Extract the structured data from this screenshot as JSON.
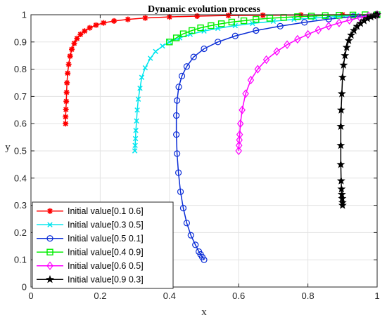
{
  "chart_data": {
    "type": "line",
    "title": "Dynamic evolution process",
    "xlabel": "x",
    "ylabel": "y",
    "xlim": [
      0,
      1
    ],
    "ylim": [
      0,
      1
    ],
    "xticks": [
      "0",
      "0.2",
      "0.4",
      "0.6",
      "0.8",
      "1"
    ],
    "yticks": [
      "0",
      "0.1",
      "0.2",
      "0.3",
      "0.4",
      "0.5",
      "0.6",
      "0.7",
      "0.8",
      "0.9",
      "1"
    ],
    "grid": true,
    "legend_position": "bottom-left",
    "series": [
      {
        "name": "Initial value[0.1 0.6]",
        "color": "#ff0000",
        "marker": "asterisk",
        "x": [
          0.1,
          0.1,
          0.101,
          0.102,
          0.103,
          0.104,
          0.106,
          0.109,
          0.113,
          0.118,
          0.125,
          0.133,
          0.143,
          0.155,
          0.17,
          0.188,
          0.21,
          0.24,
          0.28,
          0.33,
          0.4,
          0.48,
          0.57,
          0.67,
          0.78,
          0.9,
          1.0
        ],
        "y": [
          0.6,
          0.625,
          0.652,
          0.682,
          0.715,
          0.75,
          0.785,
          0.818,
          0.848,
          0.873,
          0.895,
          0.913,
          0.928,
          0.94,
          0.952,
          0.962,
          0.97,
          0.977,
          0.983,
          0.988,
          0.992,
          0.995,
          0.997,
          0.998,
          0.999,
          1.0,
          1.0
        ]
      },
      {
        "name": "Initial value[0.3 0.5]",
        "color": "#00e5ee",
        "marker": "x",
        "x": [
          0.3,
          0.301,
          0.302,
          0.303,
          0.305,
          0.307,
          0.31,
          0.315,
          0.32,
          0.33,
          0.345,
          0.36,
          0.38,
          0.4,
          0.43,
          0.46,
          0.5,
          0.54,
          0.59,
          0.64,
          0.7,
          0.76,
          0.82,
          0.88,
          0.94,
          1.0
        ],
        "y": [
          0.5,
          0.52,
          0.545,
          0.575,
          0.61,
          0.65,
          0.69,
          0.73,
          0.77,
          0.805,
          0.84,
          0.865,
          0.885,
          0.9,
          0.915,
          0.928,
          0.94,
          0.95,
          0.96,
          0.968,
          0.976,
          0.983,
          0.988,
          0.993,
          0.997,
          1.0
        ]
      },
      {
        "name": "Initial value[0.5 0.1]",
        "color": "#0a2cd6",
        "marker": "circle",
        "x": [
          0.5,
          0.495,
          0.49,
          0.485,
          0.475,
          0.462,
          0.45,
          0.44,
          0.432,
          0.426,
          0.422,
          0.42,
          0.42,
          0.422,
          0.427,
          0.436,
          0.45,
          0.47,
          0.5,
          0.54,
          0.59,
          0.65,
          0.72,
          0.79,
          0.86,
          0.93,
          1.0
        ],
        "y": [
          0.1,
          0.11,
          0.12,
          0.13,
          0.155,
          0.19,
          0.235,
          0.29,
          0.35,
          0.42,
          0.49,
          0.56,
          0.63,
          0.685,
          0.735,
          0.775,
          0.81,
          0.845,
          0.875,
          0.9,
          0.922,
          0.942,
          0.958,
          0.972,
          0.984,
          0.993,
          1.0
        ]
      },
      {
        "name": "Initial value[0.4 0.9]",
        "color": "#00ee00",
        "marker": "square",
        "x": [
          0.4,
          0.42,
          0.44,
          0.465,
          0.49,
          0.52,
          0.55,
          0.58,
          0.615,
          0.65,
          0.69,
          0.73,
          0.77,
          0.81,
          0.85,
          0.89,
          0.93,
          0.965,
          1.0
        ],
        "y": [
          0.9,
          0.915,
          0.93,
          0.942,
          0.952,
          0.96,
          0.967,
          0.973,
          0.978,
          0.983,
          0.987,
          0.99,
          0.993,
          0.995,
          0.997,
          0.998,
          0.999,
          1.0,
          1.0
        ]
      },
      {
        "name": "Initial value[0.6 0.5]",
        "color": "#ff00ff",
        "marker": "diamond",
        "x": [
          0.6,
          0.601,
          0.602,
          0.603,
          0.605,
          0.61,
          0.62,
          0.635,
          0.655,
          0.68,
          0.71,
          0.74,
          0.77,
          0.8,
          0.83,
          0.86,
          0.89,
          0.92,
          0.95,
          0.975,
          1.0
        ],
        "y": [
          0.5,
          0.52,
          0.54,
          0.56,
          0.6,
          0.65,
          0.71,
          0.76,
          0.8,
          0.835,
          0.865,
          0.89,
          0.91,
          0.928,
          0.944,
          0.958,
          0.97,
          0.98,
          0.99,
          0.996,
          1.0
        ]
      },
      {
        "name": "Initial value[0.9 0.3]",
        "color": "#000000",
        "marker": "star",
        "x": [
          0.9,
          0.9,
          0.899,
          0.898,
          0.897,
          0.896,
          0.895,
          0.895,
          0.895,
          0.896,
          0.898,
          0.9,
          0.903,
          0.907,
          0.912,
          0.918,
          0.925,
          0.933,
          0.942,
          0.952,
          0.962,
          0.972,
          0.982,
          0.99,
          0.996,
          1.0
        ],
        "y": [
          0.3,
          0.31,
          0.325,
          0.34,
          0.36,
          0.39,
          0.45,
          0.52,
          0.59,
          0.65,
          0.71,
          0.77,
          0.815,
          0.85,
          0.88,
          0.905,
          0.925,
          0.942,
          0.957,
          0.968,
          0.978,
          0.986,
          0.992,
          0.996,
          0.999,
          1.0
        ]
      }
    ]
  }
}
